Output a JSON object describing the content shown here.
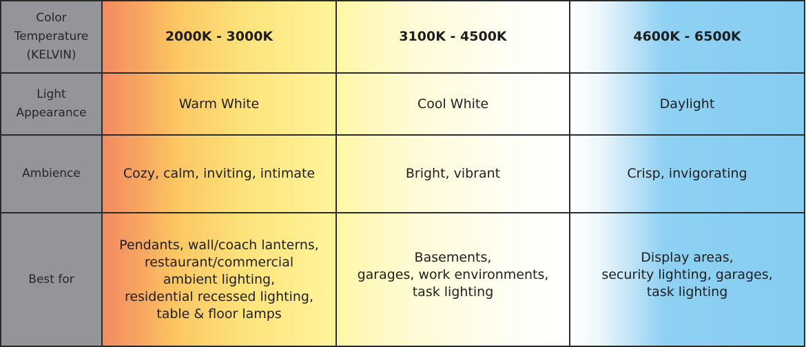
{
  "colors": {
    "header_bg": "#939598",
    "warm": "#f38a62",
    "yellow": "#fff59c",
    "daylight": "#85cdf1",
    "border": "#2a2a2a"
  },
  "rows": [
    {
      "label": [
        "Color",
        "Temperature",
        "(KELVIN)"
      ],
      "cells": [
        [
          "2000K - 3000K"
        ],
        [
          "3100K - 4500K"
        ],
        [
          "4600K - 6500K"
        ]
      ]
    },
    {
      "label": [
        "Light",
        "Appearance"
      ],
      "cells": [
        [
          "Warm White"
        ],
        [
          "Cool White"
        ],
        [
          "Daylight"
        ]
      ]
    },
    {
      "label": [
        "Ambience"
      ],
      "cells": [
        [
          "Cozy, calm, inviting, intimate"
        ],
        [
          "Bright, vibrant"
        ],
        [
          "Crisp, invigorating"
        ]
      ]
    },
    {
      "label": [
        "Best for"
      ],
      "cells": [
        [
          "Pendants, wall/coach lanterns,",
          "restaurant/commercial",
          "ambient lighting,",
          "residential recessed lighting,",
          "table & floor lamps"
        ],
        [
          "Basements,",
          "garages, work environments,",
          "task lighting"
        ],
        [
          "Display areas,",
          "security lighting, garages,",
          "task lighting"
        ]
      ]
    }
  ]
}
